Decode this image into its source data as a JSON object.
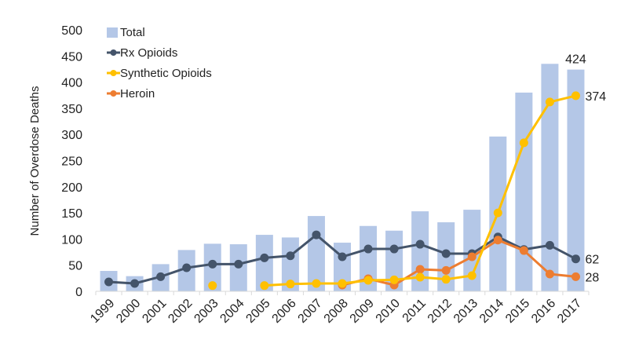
{
  "chart_data": {
    "type": "bar",
    "title": "",
    "xlabel": "",
    "ylabel": "Number of Overdose Deaths",
    "ylim": [
      0,
      500
    ],
    "yticks": [
      0,
      50,
      100,
      150,
      200,
      250,
      300,
      350,
      400,
      450,
      500
    ],
    "grid": false,
    "legend_position": "top-left",
    "categories": [
      "1999",
      "2000",
      "2001",
      "2002",
      "2003",
      "2004",
      "2005",
      "2006",
      "2007",
      "2008",
      "2009",
      "2010",
      "2011",
      "2012",
      "2013",
      "2014",
      "2015",
      "2016",
      "2017"
    ],
    "series": [
      {
        "name": "Total",
        "type": "bar",
        "color": "#b4c7e7",
        "values": [
          39,
          29,
          52,
          79,
          91,
          90,
          108,
          103,
          144,
          93,
          125,
          116,
          153,
          132,
          156,
          296,
          380,
          435,
          424
        ]
      },
      {
        "name": "Rx Opioids",
        "type": "line",
        "color": "#44546a",
        "values": [
          18,
          15,
          28,
          45,
          52,
          52,
          64,
          68,
          108,
          66,
          81,
          81,
          90,
          72,
          72,
          104,
          80,
          88,
          62
        ]
      },
      {
        "name": "Synthetic Opioids",
        "type": "line",
        "color": "#ffc000",
        "values": [
          null,
          null,
          null,
          null,
          11,
          null,
          11,
          14,
          15,
          15,
          21,
          22,
          27,
          23,
          30,
          150,
          284,
          362,
          374
        ]
      },
      {
        "name": "Heroin",
        "type": "line",
        "color": "#ed7d31",
        "values": [
          null,
          null,
          null,
          null,
          null,
          null,
          null,
          null,
          null,
          12,
          24,
          12,
          42,
          40,
          66,
          98,
          78,
          33,
          28
        ]
      }
    ],
    "annotations": [
      {
        "series": "Total",
        "category": "2017",
        "text": "424"
      },
      {
        "series": "Synthetic Opioids",
        "category": "2017",
        "text": "374"
      },
      {
        "series": "Rx Opioids",
        "category": "2017",
        "text": "62"
      },
      {
        "series": "Heroin",
        "category": "2017",
        "text": "28"
      }
    ]
  }
}
